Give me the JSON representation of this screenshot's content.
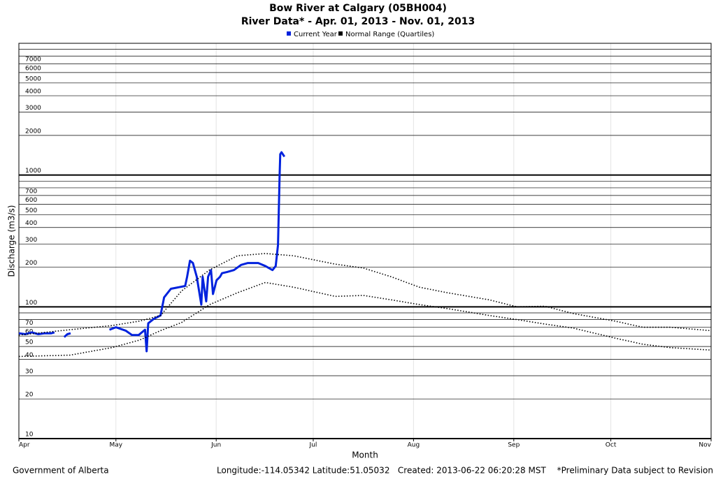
{
  "chart_data": {
    "type": "line",
    "title": "Bow River at Calgary (05BH004)",
    "subtitle": "River Data* - Apr. 01, 2013 - Nov. 01, 2013",
    "xlabel": "Month",
    "ylabel": "Discharge (m3/s)",
    "ylog": true,
    "grid": true,
    "legend": "top",
    "xlim": [
      0,
      214
    ],
    "xticks": [
      {
        "value": 0,
        "label": "Apr"
      },
      {
        "value": 30,
        "label": "May"
      },
      {
        "value": 61,
        "label": "Jun"
      },
      {
        "value": 91,
        "label": "Jul"
      },
      {
        "value": 122,
        "label": "Aug"
      },
      {
        "value": 153,
        "label": "Sep"
      },
      {
        "value": 183,
        "label": "Oct"
      },
      {
        "value": 214,
        "label": "Nov"
      }
    ],
    "ylim": [
      10,
      10000
    ],
    "yticks": [
      10,
      20,
      30,
      40,
      50,
      60,
      70,
      100,
      200,
      300,
      400,
      500,
      600,
      700,
      1000,
      2000,
      3000,
      4000,
      5000,
      6000,
      7000
    ],
    "yminor": [
      80,
      90,
      800,
      900,
      8000,
      9000
    ],
    "series": [
      {
        "name": "Current Year",
        "color": "#0022dd",
        "x": [
          0,
          2,
          4,
          6,
          8,
          10,
          11,
          12,
          14,
          15,
          16,
          20,
          28,
          30,
          33,
          35,
          37,
          39,
          39.5,
          40,
          41.7,
          43.8,
          44.9,
          47,
          51.4,
          52,
          52.9,
          53.8,
          55,
          56.4,
          56.8,
          57.9,
          58.5,
          59.4,
          60,
          61.1,
          62.2,
          62.8,
          64.4,
          66.5,
          68.7,
          70.8,
          74,
          76.2,
          78.4,
          79.4,
          80.1,
          80.6,
          80.8,
          81.2,
          82.1
        ],
        "values": [
          63,
          62,
          64,
          62,
          63,
          63,
          64,
          null,
          59,
          62,
          63,
          null,
          67,
          70,
          66,
          61,
          61,
          67,
          46,
          75,
          81,
          86,
          118,
          137,
          144,
          169,
          224,
          215,
          169,
          104,
          169,
          110,
          169,
          190,
          125,
          159,
          169,
          180,
          184,
          190,
          208,
          215,
          215,
          204,
          190,
          204,
          295,
          1000,
          1440,
          1490,
          1380
        ]
      },
      {
        "name": "Normal Range (Quartiles)",
        "color": "#000000",
        "x": [
          0,
          15.8,
          28.7,
          37.4,
          43.8,
          50.3,
          59,
          67.6,
          76.2,
          84.9,
          97.8,
          106.5,
          115.1,
          123.8,
          132.4,
          145.4,
          154,
          162.6,
          171.3,
          184.2,
          192.9,
          201.5,
          213.8
        ],
        "upper": [
          61,
          67,
          72,
          78,
          86,
          132,
          191,
          244,
          254,
          244,
          211,
          197,
          169,
          141,
          128,
          113,
          100,
          101,
          89,
          78,
          70,
          70,
          66
        ],
        "lower": [
          42,
          43,
          49,
          56,
          66,
          76,
          104,
          128,
          153,
          141,
          120,
          122,
          113,
          104,
          97,
          86,
          80,
          74,
          69,
          58,
          52,
          49,
          47
        ]
      }
    ],
    "annotations": [
      "Government of Alberta",
      "Longitude:-114.05342 Latitude:51.05032   Created: 2013-06-22 06:20:28 MST",
      "*Preliminary Data subject to Revision"
    ]
  }
}
